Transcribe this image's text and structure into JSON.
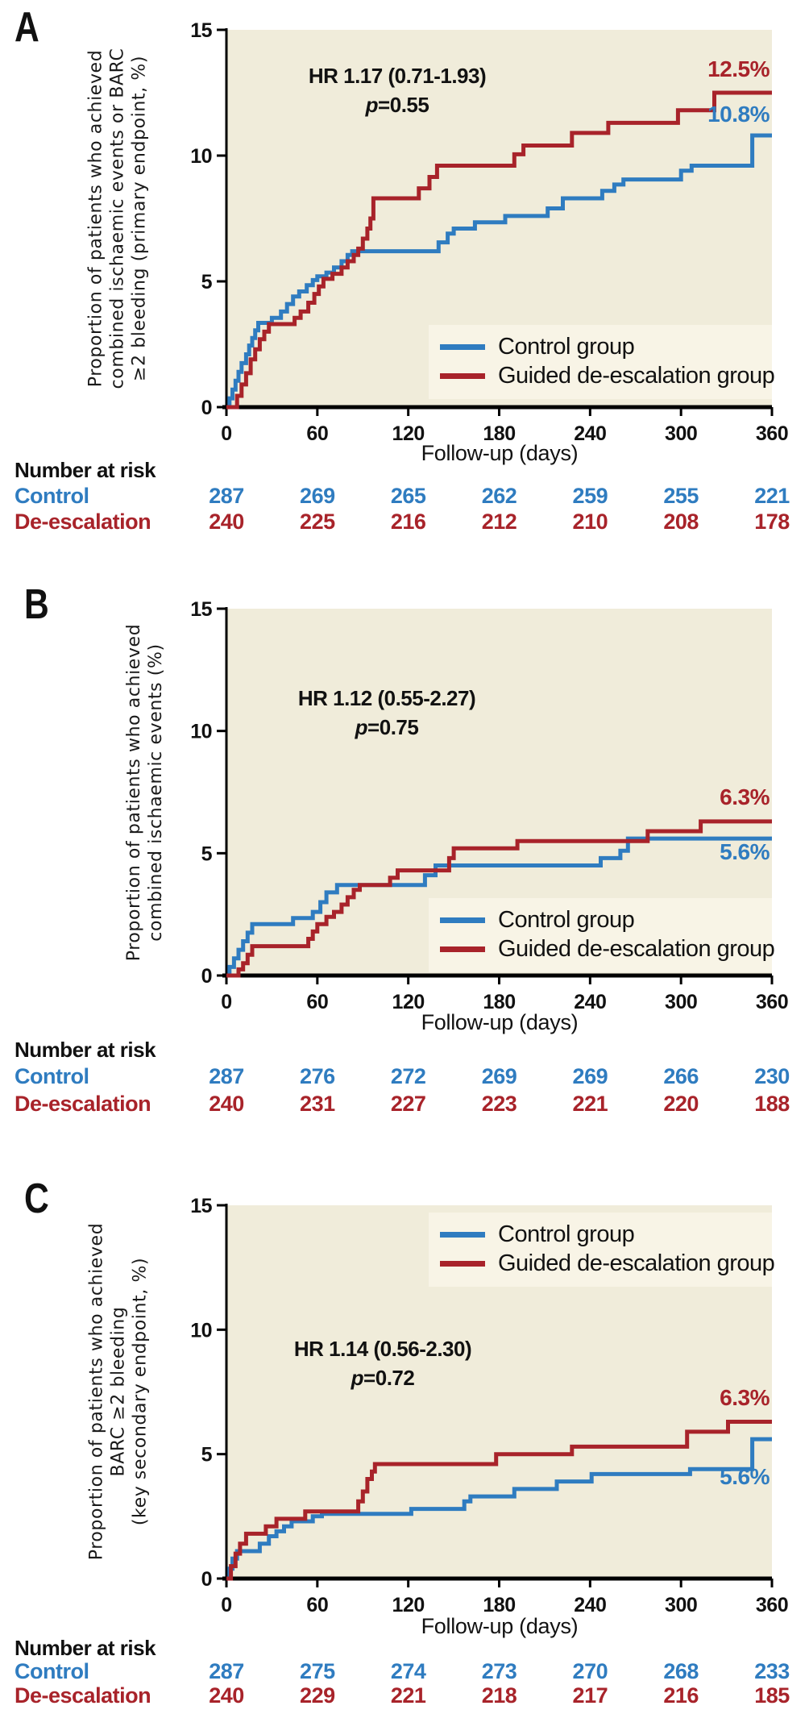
{
  "colors": {
    "control": "#2f7cc0",
    "deescalation": "#a8232a",
    "plot_bg": "#f0ecda",
    "legend_bg": "#f8f4e6",
    "axis": "#000000"
  },
  "legend": {
    "control_label": "Control group",
    "deescalation_label": "Guided de-escalation group"
  },
  "xlabel": "Follow-up (days)",
  "risk_header": "Number at risk",
  "risk_labels": {
    "control": "Control",
    "deescalation": "De-escalation"
  },
  "chart_data": [
    {
      "type": "line",
      "panel": "A",
      "ylabel_lines": [
        "Proportion of patients who achieved",
        "combined ischaemic events or BARC",
        "≥2 bleeding (primary endpoint, %)"
      ],
      "xlabel": "Follow-up (days)",
      "xlim": [
        0,
        360
      ],
      "ylim": [
        0,
        15
      ],
      "x_ticks": [
        0,
        60,
        120,
        180,
        240,
        300,
        360
      ],
      "y_ticks": [
        0,
        5,
        10,
        15
      ],
      "grid": "off",
      "legend_position": "bottom-right",
      "hr_text": "HR 1.17 (0.71-1.93)",
      "p_italic": "p",
      "p_text": "=0.55",
      "end_label_deescalation": "12.5%",
      "end_label_control": "10.8%",
      "series": [
        {
          "name": "Control group",
          "color_key": "control",
          "final_value_pct": 10.8,
          "step_points": [
            [
              0,
              0
            ],
            [
              2,
              0.35
            ],
            [
              4,
              0.7
            ],
            [
              6,
              1.05
            ],
            [
              8,
              1.4
            ],
            [
              10,
              1.75
            ],
            [
              13,
              2.1
            ],
            [
              15,
              2.45
            ],
            [
              17,
              2.75
            ],
            [
              19,
              3.05
            ],
            [
              21,
              3.35
            ],
            [
              30,
              3.55
            ],
            [
              36,
              3.8
            ],
            [
              40,
              4.1
            ],
            [
              44,
              4.4
            ],
            [
              48,
              4.6
            ],
            [
              53,
              4.85
            ],
            [
              57,
              5.05
            ],
            [
              60,
              5.2
            ],
            [
              66,
              5.35
            ],
            [
              71,
              5.55
            ],
            [
              76,
              5.8
            ],
            [
              80,
              6.05
            ],
            [
              83,
              6.2
            ],
            [
              140,
              6.55
            ],
            [
              146,
              6.9
            ],
            [
              150,
              7.1
            ],
            [
              164,
              7.35
            ],
            [
              184,
              7.6
            ],
            [
              212,
              7.9
            ],
            [
              222,
              8.3
            ],
            [
              248,
              8.6
            ],
            [
              256,
              8.85
            ],
            [
              262,
              9.05
            ],
            [
              300,
              9.4
            ],
            [
              307,
              9.6
            ],
            [
              347,
              10.8
            ],
            [
              360,
              10.8
            ]
          ]
        },
        {
          "name": "Guided de-escalation group",
          "color_key": "deescalation",
          "final_value_pct": 12.5,
          "step_points": [
            [
              0,
              0
            ],
            [
              7,
              0.45
            ],
            [
              10,
              0.9
            ],
            [
              13,
              1.35
            ],
            [
              16,
              1.9
            ],
            [
              19,
              2.3
            ],
            [
              22,
              2.7
            ],
            [
              25,
              3.0
            ],
            [
              28,
              3.3
            ],
            [
              45,
              3.55
            ],
            [
              49,
              3.8
            ],
            [
              54,
              4.15
            ],
            [
              58,
              4.5
            ],
            [
              61,
              4.8
            ],
            [
              64,
              5.1
            ],
            [
              70,
              5.3
            ],
            [
              76,
              5.55
            ],
            [
              80,
              5.8
            ],
            [
              84,
              6.05
            ],
            [
              87,
              6.3
            ],
            [
              90,
              6.7
            ],
            [
              93,
              7.1
            ],
            [
              95,
              7.5
            ],
            [
              97,
              8.3
            ],
            [
              127,
              8.7
            ],
            [
              134,
              9.15
            ],
            [
              139,
              9.6
            ],
            [
              190,
              10.05
            ],
            [
              196,
              10.4
            ],
            [
              228,
              10.9
            ],
            [
              252,
              11.3
            ],
            [
              298,
              11.8
            ],
            [
              322,
              12.5
            ],
            [
              360,
              12.5
            ]
          ]
        }
      ],
      "number_at_risk": {
        "days": [
          0,
          60,
          120,
          180,
          240,
          300,
          360
        ],
        "control": [
          287,
          269,
          265,
          262,
          259,
          255,
          221
        ],
        "deescalation": [
          240,
          225,
          216,
          212,
          210,
          208,
          178
        ]
      }
    },
    {
      "type": "line",
      "panel": "B",
      "ylabel_lines": [
        "Proportion of patients who achieved",
        "combined ischaemic events  (%)"
      ],
      "xlabel": "Follow-up (days)",
      "xlim": [
        0,
        360
      ],
      "ylim": [
        0,
        15
      ],
      "x_ticks": [
        0,
        60,
        120,
        180,
        240,
        300,
        360
      ],
      "y_ticks": [
        0,
        5,
        10,
        15
      ],
      "grid": "off",
      "legend_position": "bottom-right",
      "hr_text": "HR 1.12 (0.55-2.27)",
      "p_italic": "p",
      "p_text": "=0.75",
      "end_label_deescalation": "6.3%",
      "end_label_control": "5.6%",
      "series": [
        {
          "name": "Control group",
          "color_key": "control",
          "final_value_pct": 5.6,
          "step_points": [
            [
              0,
              0
            ],
            [
              2,
              0.35
            ],
            [
              5,
              0.7
            ],
            [
              8,
              1.05
            ],
            [
              11,
              1.4
            ],
            [
              14,
              1.75
            ],
            [
              17,
              2.1
            ],
            [
              44,
              2.35
            ],
            [
              57,
              2.6
            ],
            [
              62,
              3.0
            ],
            [
              66,
              3.4
            ],
            [
              73,
              3.7
            ],
            [
              131,
              4.1
            ],
            [
              138,
              4.5
            ],
            [
              247,
              4.8
            ],
            [
              260,
              5.1
            ],
            [
              265,
              5.6
            ],
            [
              360,
              5.6
            ]
          ]
        },
        {
          "name": "Guided de-escalation group",
          "color_key": "deescalation",
          "final_value_pct": 6.3,
          "step_points": [
            [
              0,
              0
            ],
            [
              8,
              0.25
            ],
            [
              11,
              0.5
            ],
            [
              14,
              0.85
            ],
            [
              17,
              1.2
            ],
            [
              54,
              1.5
            ],
            [
              57,
              1.8
            ],
            [
              60,
              2.1
            ],
            [
              66,
              2.4
            ],
            [
              71,
              2.6
            ],
            [
              76,
              2.9
            ],
            [
              80,
              3.2
            ],
            [
              84,
              3.5
            ],
            [
              88,
              3.7
            ],
            [
              108,
              4.0
            ],
            [
              113,
              4.3
            ],
            [
              147,
              4.8
            ],
            [
              150,
              5.2
            ],
            [
              192,
              5.5
            ],
            [
              278,
              5.9
            ],
            [
              313,
              6.3
            ],
            [
              360,
              6.3
            ]
          ]
        }
      ],
      "number_at_risk": {
        "days": [
          0,
          60,
          120,
          180,
          240,
          300,
          360
        ],
        "control": [
          287,
          276,
          272,
          269,
          269,
          266,
          230
        ],
        "deescalation": [
          240,
          231,
          227,
          223,
          221,
          220,
          188
        ]
      }
    },
    {
      "type": "line",
      "panel": "C",
      "ylabel_lines": [
        "Proportion of patients who achieved",
        "BARC ≥2 bleeding",
        "(key secondary endpoint, %)"
      ],
      "xlabel": "Follow-up (days)",
      "xlim": [
        0,
        360
      ],
      "ylim": [
        0,
        15
      ],
      "x_ticks": [
        0,
        60,
        120,
        180,
        240,
        300,
        360
      ],
      "y_ticks": [
        0,
        5,
        10,
        15
      ],
      "grid": "off",
      "legend_position": "top-right",
      "hr_text": "HR 1.14 (0.56-2.30)",
      "p_italic": "p",
      "p_text": "=0.72",
      "end_label_deescalation": "6.3%",
      "end_label_control": "5.6%",
      "series": [
        {
          "name": "Control group",
          "color_key": "control",
          "final_value_pct": 5.6,
          "step_points": [
            [
              0,
              0
            ],
            [
              2,
              0.4
            ],
            [
              4,
              0.8
            ],
            [
              7,
              1.1
            ],
            [
              22,
              1.4
            ],
            [
              28,
              1.7
            ],
            [
              33,
              1.9
            ],
            [
              38,
              2.1
            ],
            [
              43,
              2.3
            ],
            [
              57,
              2.5
            ],
            [
              63,
              2.6
            ],
            [
              122,
              2.8
            ],
            [
              157,
              3.1
            ],
            [
              161,
              3.3
            ],
            [
              190,
              3.6
            ],
            [
              218,
              3.9
            ],
            [
              241,
              4.2
            ],
            [
              306,
              4.4
            ],
            [
              347,
              5.6
            ],
            [
              360,
              5.6
            ]
          ]
        },
        {
          "name": "Guided de-escalation group",
          "color_key": "deescalation",
          "final_value_pct": 6.3,
          "step_points": [
            [
              0,
              0
            ],
            [
              3,
              0.5
            ],
            [
              6,
              1.0
            ],
            [
              9,
              1.4
            ],
            [
              13,
              1.8
            ],
            [
              26,
              2.1
            ],
            [
              33,
              2.4
            ],
            [
              52,
              2.7
            ],
            [
              87,
              3.1
            ],
            [
              90,
              3.5
            ],
            [
              93,
              4.0
            ],
            [
              96,
              4.3
            ],
            [
              98,
              4.6
            ],
            [
              178,
              5.0
            ],
            [
              228,
              5.3
            ],
            [
              304,
              5.9
            ],
            [
              331,
              6.3
            ],
            [
              360,
              6.3
            ]
          ]
        }
      ],
      "number_at_risk": {
        "days": [
          0,
          60,
          120,
          180,
          240,
          300,
          360
        ],
        "control": [
          287,
          275,
          274,
          273,
          270,
          268,
          233
        ],
        "deescalation": [
          240,
          229,
          221,
          218,
          217,
          216,
          185
        ]
      }
    }
  ]
}
